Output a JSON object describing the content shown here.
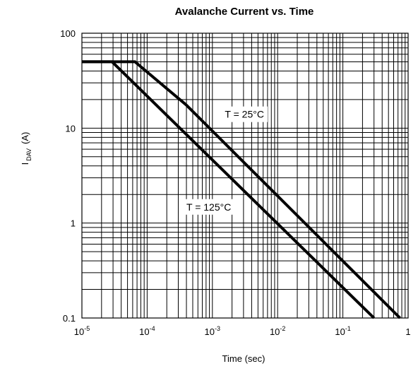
{
  "chart_data": {
    "type": "line",
    "title": "Avalanche Current vs. Time",
    "xlabel": "Time (sec)",
    "ylabel_main": "I",
    "ylabel_sub": "DAV",
    "ylabel_unit": "(A)",
    "x_scale": "log",
    "y_scale": "log",
    "xlim": [
      1e-05,
      1
    ],
    "ylim": [
      0.1,
      100
    ],
    "grid": true,
    "x_ticks": [
      {
        "base": "10",
        "exp": "-5",
        "value": 1e-05
      },
      {
        "base": "10",
        "exp": "-4",
        "value": 0.0001
      },
      {
        "base": "10",
        "exp": "-3",
        "value": 0.001
      },
      {
        "base": "10",
        "exp": "-2",
        "value": 0.01
      },
      {
        "base": "10",
        "exp": "-1",
        "value": 0.1
      },
      {
        "base": "1",
        "exp": "",
        "value": 1
      }
    ],
    "y_ticks": [
      {
        "label": "100",
        "value": 100
      },
      {
        "label": "10",
        "value": 10
      },
      {
        "label": "1",
        "value": 1
      },
      {
        "label": "0.1",
        "value": 0.1
      }
    ],
    "series": [
      {
        "label": "T = 25°C",
        "points": [
          [
            1e-05,
            50
          ],
          [
            6.5e-05,
            50
          ],
          [
            0.0004,
            17.5
          ],
          [
            0.75,
            0.1
          ]
        ],
        "label_pos": [
          0.0031,
          14
        ]
      },
      {
        "label": "T = 125°C",
        "points": [
          [
            1e-05,
            50
          ],
          [
            2.9e-05,
            50
          ],
          [
            0.3,
            0.1
          ]
        ],
        "label_pos": [
          0.00088,
          1.48
        ]
      }
    ]
  }
}
